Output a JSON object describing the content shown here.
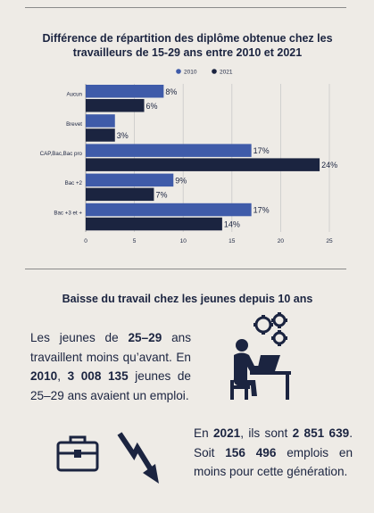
{
  "chart_data": {
    "type": "bar",
    "orientation": "horizontal",
    "title": "Différence de répartition des diplôme obtenue chez les travailleurs de 15-29 ans entre 2010 et 2021",
    "categories": [
      "Aucun",
      "Brevet",
      "CAP,Bac,Bac pro",
      "Bac +2",
      "Bac +3 et +"
    ],
    "series": [
      {
        "name": "2010",
        "values": [
          8,
          3,
          17,
          9,
          17
        ],
        "labels": [
          "8%",
          "",
          "17%",
          "9%",
          "17%"
        ]
      },
      {
        "name": "2021",
        "values": [
          6,
          3,
          24,
          7,
          14
        ],
        "labels": [
          "6%",
          "3%",
          "24%",
          "7%",
          "14%"
        ]
      }
    ],
    "xticks": [
      "0",
      "5",
      "10",
      "15",
      "20",
      "25"
    ],
    "xlim": [
      0,
      25
    ],
    "grid": true,
    "legend": "top-right",
    "colors": {
      "2010": "#3f5ba9",
      "2021": "#1b2440"
    }
  },
  "section2": {
    "title": "Baisse du travail chez les jeunes depuis 10 ans"
  },
  "para1": {
    "t1": "Les jeunes de ",
    "b1": "25–29",
    "t2": " ans travaillent moins qu’avant. En ",
    "b2": "2010",
    "t3": ", ",
    "b3": "3 008 135",
    "t4": " jeunes de 25–29 ans avaient un emploi."
  },
  "para2": {
    "t1": "En ",
    "b1": "2021",
    "t2": ", ils sont ",
    "b2": "2 851 639",
    "t3": ". Soit ",
    "b3": "156 496",
    "t4": " emplois en moins pour cette génération."
  },
  "icons": [
    "worker-computer-gears-icon",
    "briefcase-icon",
    "downward-arrow-icon"
  ]
}
